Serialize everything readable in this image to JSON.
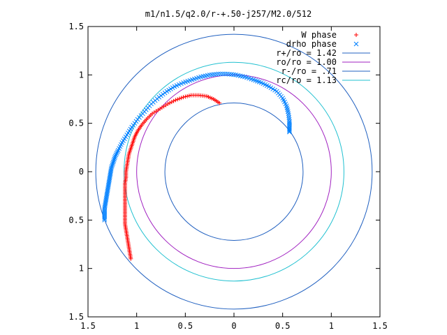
{
  "chart_data": {
    "type": "scatter",
    "title": "m1/n1.5/q2.0/r-+.50-j257/M2.0/512",
    "xlabel": "",
    "ylabel": "",
    "xlim": [
      -1.5,
      1.5
    ],
    "ylim": [
      -1.5,
      1.5
    ],
    "x_ticks": [
      -1.5,
      -1,
      -0.5,
      0,
      0.5,
      1,
      1.5
    ],
    "y_ticks": [
      -1.5,
      -1,
      -0.5,
      0,
      0.5,
      1,
      1.5
    ],
    "x_tick_labels": [
      "1.5",
      "1",
      "0.5",
      "0",
      "0.5",
      "1",
      "1.5"
    ],
    "y_tick_labels": [
      "1.5",
      "1",
      "0.5",
      "0",
      "0.5",
      "1",
      "1.5"
    ],
    "grid": false,
    "legend_position": "top-right",
    "series": [
      {
        "name": "W phase",
        "kind": "points",
        "marker": "plus",
        "color": "#ff0000",
        "points": [
          [
            -1.06,
            -0.9
          ],
          [
            -1.07,
            -0.84
          ],
          [
            -1.08,
            -0.78
          ],
          [
            -1.09,
            -0.72
          ],
          [
            -1.1,
            -0.66
          ],
          [
            -1.11,
            -0.6
          ],
          [
            -1.12,
            -0.54
          ],
          [
            -1.12,
            -0.48
          ],
          [
            -1.12,
            -0.42
          ],
          [
            -1.12,
            -0.36
          ],
          [
            -1.12,
            -0.3
          ],
          [
            -1.12,
            -0.24
          ],
          [
            -1.12,
            -0.18
          ],
          [
            -1.12,
            -0.12
          ],
          [
            -1.11,
            -0.06
          ],
          [
            -1.11,
            0.0
          ],
          [
            -1.1,
            0.06
          ],
          [
            -1.09,
            0.12
          ],
          [
            -1.08,
            0.18
          ],
          [
            -1.06,
            0.24
          ],
          [
            -1.04,
            0.3
          ],
          [
            -1.02,
            0.36
          ],
          [
            -0.99,
            0.42
          ],
          [
            -0.95,
            0.48
          ],
          [
            -0.9,
            0.54
          ],
          [
            -0.84,
            0.6
          ],
          [
            -0.76,
            0.65
          ],
          [
            -0.68,
            0.7
          ],
          [
            -0.6,
            0.74
          ],
          [
            -0.52,
            0.77
          ],
          [
            -0.44,
            0.79
          ],
          [
            -0.36,
            0.79
          ],
          [
            -0.28,
            0.78
          ],
          [
            -0.21,
            0.75
          ],
          [
            -0.15,
            0.71
          ]
        ]
      },
      {
        "name": "drho phase",
        "kind": "points",
        "marker": "cross",
        "color": "#0080ff",
        "points": [
          [
            -1.33,
            -0.5
          ],
          [
            -1.33,
            -0.44
          ],
          [
            -1.33,
            -0.38
          ],
          [
            -1.32,
            -0.32
          ],
          [
            -1.31,
            -0.26
          ],
          [
            -1.3,
            -0.2
          ],
          [
            -1.29,
            -0.14
          ],
          [
            -1.28,
            -0.08
          ],
          [
            -1.27,
            -0.02
          ],
          [
            -1.26,
            0.04
          ],
          [
            -1.24,
            0.1
          ],
          [
            -1.22,
            0.16
          ],
          [
            -1.19,
            0.22
          ],
          [
            -1.15,
            0.3
          ],
          [
            -1.1,
            0.38
          ],
          [
            -1.05,
            0.46
          ],
          [
            -0.99,
            0.54
          ],
          [
            -0.92,
            0.62
          ],
          [
            -0.85,
            0.7
          ],
          [
            -0.77,
            0.77
          ],
          [
            -0.69,
            0.83
          ],
          [
            -0.61,
            0.88
          ],
          [
            -0.52,
            0.92
          ],
          [
            -0.43,
            0.95
          ],
          [
            -0.34,
            0.98
          ],
          [
            -0.25,
            1.0
          ],
          [
            -0.16,
            1.01
          ],
          [
            -0.07,
            1.01
          ],
          [
            0.02,
            1.0
          ],
          [
            0.11,
            0.98
          ],
          [
            0.2,
            0.95
          ],
          [
            0.28,
            0.92
          ],
          [
            0.36,
            0.88
          ],
          [
            0.44,
            0.83
          ],
          [
            0.5,
            0.76
          ],
          [
            0.54,
            0.68
          ],
          [
            0.56,
            0.6
          ],
          [
            0.57,
            0.52
          ],
          [
            0.57,
            0.46
          ],
          [
            0.57,
            0.41
          ]
        ]
      },
      {
        "name": "r+/ro = 1.42",
        "kind": "circle",
        "radius": 1.42,
        "center": [
          0,
          0
        ],
        "color": "#2060c0"
      },
      {
        "name": "ro/ro = 1.00",
        "kind": "circle",
        "radius": 1.0,
        "center": [
          0,
          0
        ],
        "color": "#a020c0"
      },
      {
        "name": "r-/ro = .71",
        "kind": "circle",
        "radius": 0.71,
        "center": [
          0,
          0
        ],
        "color": "#2060c0"
      },
      {
        "name": "rc/ro = 1.13",
        "kind": "circle",
        "radius": 1.13,
        "center": [
          0,
          0
        ],
        "color": "#20c0d0"
      }
    ]
  }
}
